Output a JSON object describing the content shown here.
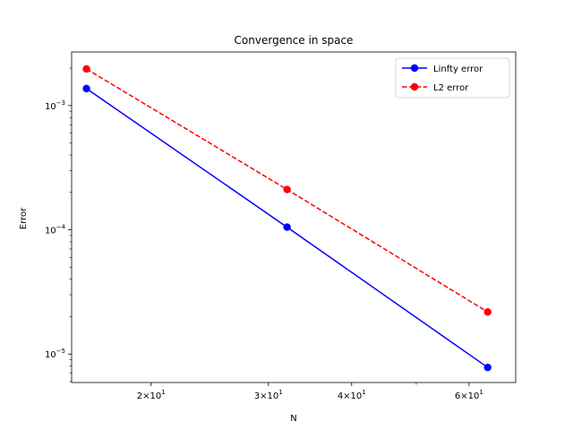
{
  "chart_data": {
    "type": "line",
    "title": "Convergence in space",
    "xlabel": "N",
    "ylabel": "Error",
    "xscale": "log",
    "yscale": "log",
    "xlim": [
      15.2,
      70.5
    ],
    "ylim": [
      5.9e-06,
      0.0027
    ],
    "grid": false,
    "legend_position": "top-right",
    "x_ticks": [
      {
        "value": 20,
        "base": "2",
        "exp": "1"
      },
      {
        "value": 30,
        "base": "3",
        "exp": "1"
      },
      {
        "value": 40,
        "base": "4",
        "exp": "1"
      },
      {
        "value": 60,
        "base": "6",
        "exp": "1"
      }
    ],
    "x_minor_ticks": [
      50
    ],
    "y_ticks": [
      {
        "value": 1e-05,
        "exp": "−5"
      },
      {
        "value": 0.0001,
        "exp": "−4"
      },
      {
        "value": 0.001,
        "exp": "−3"
      }
    ],
    "x": [
      16,
      32,
      64
    ],
    "series": [
      {
        "name": "Linfty error",
        "color": "#0000ff",
        "linestyle": "solid",
        "marker": "circle",
        "values": [
          0.00137,
          0.000105,
          7.8e-06
        ]
      },
      {
        "name": "L2 error",
        "color": "#ff0000",
        "linestyle": "dashed",
        "marker": "circle",
        "values": [
          0.00197,
          0.000211,
          2.18e-05
        ]
      }
    ]
  }
}
